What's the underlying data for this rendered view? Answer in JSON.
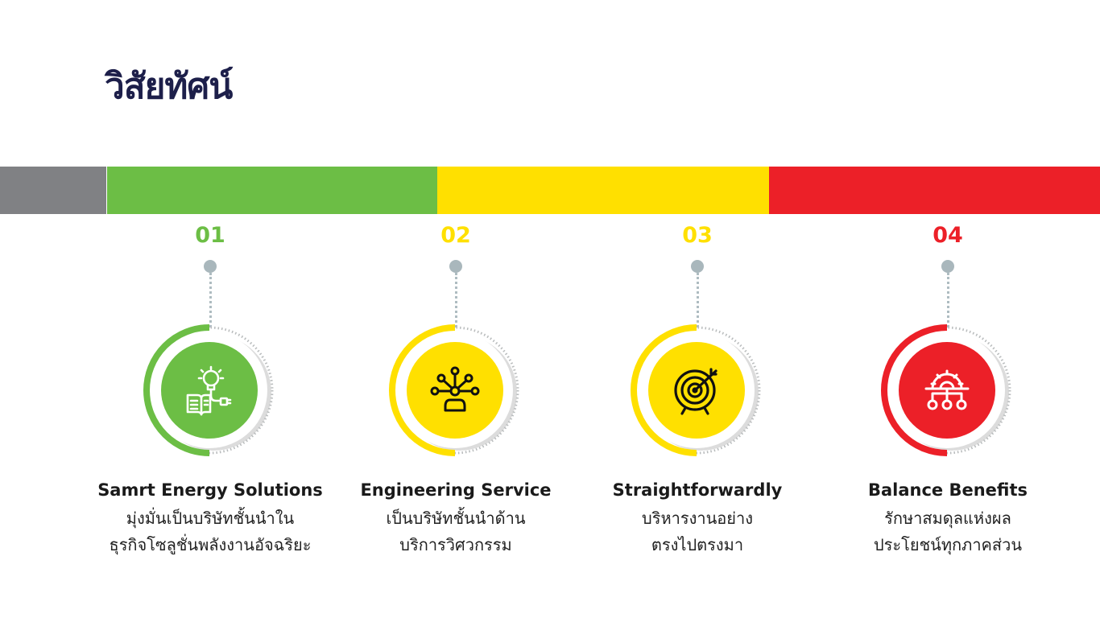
{
  "title": "วิสัยทัศน์",
  "colors": {
    "green": "#6cbe45",
    "yellow": "#ffe000",
    "red": "#ec2028",
    "gray": "#808184",
    "title": "#1d1f4a"
  },
  "steps": [
    {
      "number": "01",
      "heading": "Samrt Energy Solutions",
      "line1": "มุ่งมั่นเป็นบริษัทชั้นนำใน",
      "line2": "ธุรกิจโซลูชั่นพลังงานอัจฉริยะ",
      "icon": "lightbulb-book-plug-icon"
    },
    {
      "number": "02",
      "heading": "Engineering Service",
      "line1": "เป็นบริษัทชั้นนำด้าน",
      "line2": "บริการวิศวกรรม",
      "icon": "network-hand-icon"
    },
    {
      "number": "03",
      "heading": "Straightforwardly",
      "line1": "บริหารงานอย่าง",
      "line2": "ตรงไปตรงมา",
      "icon": "target-arrow-icon"
    },
    {
      "number": "04",
      "heading": "Balance Benefits",
      "line1": "รักษาสมดุลแห่งผล",
      "line2": "ประโยชน์ทุกภาคส่วน",
      "icon": "gear-hierarchy-icon"
    }
  ]
}
